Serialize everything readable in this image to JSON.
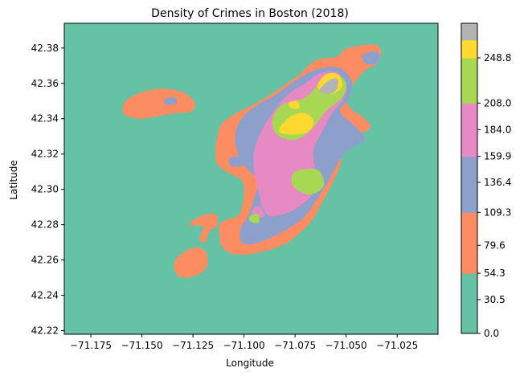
{
  "chart_data": {
    "type": "contourf",
    "title": "Density of Crimes in Boston (2018)",
    "xlabel": "Longitude",
    "ylabel": "Latitude",
    "xlim": [
      -71.188,
      -71.005
    ],
    "ylim": [
      42.218,
      42.394
    ],
    "x_ticks": [
      -71.175,
      -71.15,
      -71.125,
      -71.1,
      -71.075,
      -71.05,
      -71.025
    ],
    "x_tick_labels": [
      "−71.175",
      "−71.150",
      "−71.125",
      "−71.100",
      "−71.075",
      "−71.050",
      "−71.025"
    ],
    "y_ticks": [
      42.24,
      42.26,
      42.28,
      42.3,
      42.32,
      42.34,
      42.36,
      42.38,
      42.22
    ],
    "y_tick_labels": [
      "42.24",
      "42.26",
      "42.28",
      "42.30",
      "42.32",
      "42.34",
      "42.36",
      "42.38",
      "42.22"
    ],
    "grid": false,
    "colormap": "Set2",
    "levels": [
      0.0,
      30.5,
      54.3,
      79.6,
      109.3,
      136.4,
      159.9,
      184.0,
      208.0,
      248.8,
      265.0,
      280.0
    ],
    "level_colors": [
      "#66c2a5",
      "#66c2a5",
      "#fc8d62",
      "#fc8d62",
      "#8da0cb",
      "#8da0cb",
      "#e78ac3",
      "#e78ac3",
      "#a6d854",
      "#ffd92f",
      "#b3b3b3"
    ],
    "colorbar_ticks": [
      0.0,
      30.5,
      54.3,
      79.6,
      109.3,
      136.4,
      159.9,
      184.0,
      208.0,
      248.8
    ],
    "colorbar_tick_labels": [
      "0.0",
      "30.5",
      "54.3",
      "79.6",
      "109.3",
      "136.4",
      "159.9",
      "184.0",
      "208.0",
      "248.8"
    ],
    "regions": [
      {
        "level": 1,
        "color": "#fc8d62",
        "points": [
          [
            -71.074,
            42.364
          ],
          [
            -71.065,
            42.373
          ],
          [
            -71.055,
            42.375
          ],
          [
            -71.051,
            42.379
          ],
          [
            -71.046,
            42.381
          ],
          [
            -71.036,
            42.382
          ],
          [
            -71.033,
            42.378
          ],
          [
            -71.035,
            42.371
          ],
          [
            -71.04,
            42.368
          ],
          [
            -71.045,
            42.362
          ],
          [
            -71.048,
            42.356
          ],
          [
            -71.05,
            42.35
          ],
          [
            -71.047,
            42.345
          ],
          [
            -71.042,
            42.341
          ],
          [
            -71.038,
            42.336
          ],
          [
            -71.04,
            42.333
          ],
          [
            -71.045,
            42.331
          ],
          [
            -71.05,
            42.329
          ],
          [
            -71.052,
            42.322
          ],
          [
            -71.053,
            42.313
          ],
          [
            -71.057,
            42.303
          ],
          [
            -71.062,
            42.292
          ],
          [
            -71.067,
            42.282
          ],
          [
            -71.073,
            42.275
          ],
          [
            -71.08,
            42.269
          ],
          [
            -71.09,
            42.265
          ],
          [
            -71.1,
            42.263
          ],
          [
            -71.107,
            42.264
          ],
          [
            -71.111,
            42.268
          ],
          [
            -71.112,
            42.274
          ],
          [
            -71.112,
            42.28
          ],
          [
            -71.108,
            42.283
          ],
          [
            -71.103,
            42.285
          ],
          [
            -71.101,
            42.29
          ],
          [
            -71.1,
            42.298
          ],
          [
            -71.101,
            42.305
          ],
          [
            -71.107,
            42.309
          ],
          [
            -71.113,
            42.314
          ],
          [
            -71.114,
            42.322
          ],
          [
            -71.113,
            42.33
          ],
          [
            -71.111,
            42.337
          ],
          [
            -71.104,
            42.343
          ],
          [
            -71.097,
            42.347
          ],
          [
            -71.088,
            42.353
          ]
        ]
      },
      {
        "level": 1,
        "color": "#fc8d62",
        "points": [
          [
            -71.158,
            42.35
          ],
          [
            -71.15,
            42.355
          ],
          [
            -71.14,
            42.357
          ],
          [
            -71.13,
            42.355
          ],
          [
            -71.124,
            42.349
          ],
          [
            -71.126,
            42.344
          ],
          [
            -71.134,
            42.343
          ],
          [
            -71.144,
            42.341
          ],
          [
            -71.152,
            42.34
          ],
          [
            -71.159,
            42.343
          ]
        ]
      },
      {
        "level": 1,
        "color": "#fc8d62",
        "points": [
          [
            -71.127,
            42.28
          ],
          [
            -71.121,
            42.285
          ],
          [
            -71.114,
            42.286
          ],
          [
            -71.113,
            42.28
          ],
          [
            -71.117,
            42.276
          ],
          [
            -71.119,
            42.27
          ],
          [
            -71.122,
            42.272
          ],
          [
            -71.12,
            42.279
          ]
        ]
      },
      {
        "level": 1,
        "color": "#fc8d62",
        "points": [
          [
            -71.133,
            42.261
          ],
          [
            -71.125,
            42.267
          ],
          [
            -71.119,
            42.265
          ],
          [
            -71.118,
            42.257
          ],
          [
            -71.122,
            42.252
          ],
          [
            -71.13,
            42.25
          ],
          [
            -71.134,
            42.254
          ]
        ]
      },
      {
        "level": 2,
        "color": "#8da0cb",
        "points": [
          [
            -71.084,
            42.354
          ],
          [
            -71.07,
            42.365
          ],
          [
            -71.06,
            42.369
          ],
          [
            -71.052,
            42.368
          ],
          [
            -71.047,
            42.36
          ],
          [
            -71.049,
            42.351
          ],
          [
            -71.053,
            42.344
          ],
          [
            -71.045,
            42.335
          ],
          [
            -71.041,
            42.328
          ],
          [
            -71.048,
            42.323
          ],
          [
            -71.053,
            42.317
          ],
          [
            -71.058,
            42.306
          ],
          [
            -71.064,
            42.295
          ],
          [
            -71.07,
            42.285
          ],
          [
            -71.078,
            42.278
          ],
          [
            -71.088,
            42.272
          ],
          [
            -71.096,
            42.269
          ],
          [
            -71.101,
            42.27
          ],
          [
            -71.102,
            42.277
          ],
          [
            -71.098,
            42.285
          ],
          [
            -71.095,
            42.295
          ],
          [
            -71.093,
            42.305
          ],
          [
            -71.098,
            42.311
          ],
          [
            -71.103,
            42.32
          ],
          [
            -71.104,
            42.333
          ],
          [
            -71.098,
            42.344
          ]
        ]
      },
      {
        "level": 2,
        "color": "#8da0cb",
        "points": [
          [
            -71.042,
            42.376
          ],
          [
            -71.035,
            42.378
          ],
          [
            -71.034,
            42.372
          ],
          [
            -71.04,
            42.371
          ]
        ]
      },
      {
        "level": 2,
        "color": "#8da0cb",
        "points": [
          [
            -71.139,
            42.351
          ],
          [
            -71.134,
            42.352
          ],
          [
            -71.133,
            42.349
          ],
          [
            -71.138,
            42.348
          ]
        ]
      },
      {
        "level": 2,
        "color": "#8da0cb",
        "points": [
          [
            -71.107,
            42.318
          ],
          [
            -71.1,
            42.318
          ],
          [
            -71.099,
            42.314
          ],
          [
            -71.106,
            42.313
          ]
        ]
      },
      {
        "level": 3,
        "color": "#e78ac3",
        "points": [
          [
            -71.08,
            42.352
          ],
          [
            -71.07,
            42.36
          ],
          [
            -71.062,
            42.366
          ],
          [
            -71.054,
            42.366
          ],
          [
            -71.05,
            42.358
          ],
          [
            -71.052,
            42.35
          ],
          [
            -71.057,
            42.343
          ],
          [
            -71.062,
            42.332
          ],
          [
            -71.066,
            42.322
          ],
          [
            -71.065,
            42.31
          ],
          [
            -71.065,
            42.3
          ],
          [
            -71.07,
            42.293
          ],
          [
            -71.078,
            42.287
          ],
          [
            -71.087,
            42.285
          ],
          [
            -71.091,
            42.29
          ],
          [
            -71.093,
            42.3
          ],
          [
            -71.095,
            42.31
          ],
          [
            -71.095,
            42.322
          ],
          [
            -71.09,
            42.336
          ]
        ]
      },
      {
        "level": 3,
        "color": "#e78ac3",
        "points": [
          [
            -71.096,
            42.286
          ],
          [
            -71.094,
            42.284
          ],
          [
            -71.09,
            42.285
          ],
          [
            -71.092,
            42.29
          ],
          [
            -71.095,
            42.29
          ]
        ]
      },
      {
        "level": 4,
        "color": "#a6d854",
        "points": [
          [
            -71.081,
            42.348
          ],
          [
            -71.07,
            42.352
          ],
          [
            -71.063,
            42.36
          ],
          [
            -71.055,
            42.365
          ],
          [
            -71.05,
            42.36
          ],
          [
            -71.052,
            42.352
          ],
          [
            -71.06,
            42.344
          ],
          [
            -71.067,
            42.334
          ],
          [
            -71.075,
            42.328
          ],
          [
            -71.084,
            42.331
          ],
          [
            -71.086,
            42.34
          ]
        ]
      },
      {
        "level": 4,
        "color": "#a6d854",
        "points": [
          [
            -71.075,
            42.31
          ],
          [
            -71.064,
            42.311
          ],
          [
            -71.061,
            42.302
          ],
          [
            -71.068,
            42.297
          ],
          [
            -71.076,
            42.302
          ]
        ]
      },
      {
        "level": 4,
        "color": "#a6d854",
        "points": [
          [
            -71.097,
            42.285
          ],
          [
            -71.093,
            42.286
          ],
          [
            -71.093,
            42.281
          ],
          [
            -71.097,
            42.282
          ]
        ]
      },
      {
        "level": 5,
        "color": "#ffd92f",
        "points": [
          [
            -71.082,
            42.336
          ],
          [
            -71.076,
            42.342
          ],
          [
            -71.07,
            42.343
          ],
          [
            -71.066,
            42.339
          ],
          [
            -71.068,
            42.333
          ],
          [
            -71.075,
            42.331
          ],
          [
            -71.082,
            42.332
          ]
        ]
      },
      {
        "level": 5,
        "color": "#ffd92f",
        "points": [
          [
            -71.064,
            42.358
          ],
          [
            -71.06,
            42.365
          ],
          [
            -71.054,
            42.365
          ],
          [
            -71.052,
            42.358
          ],
          [
            -71.058,
            42.354
          ]
        ]
      },
      {
        "level": 5,
        "color": "#ffd92f",
        "points": [
          [
            -71.078,
            42.349
          ],
          [
            -71.074,
            42.35
          ],
          [
            -71.073,
            42.346
          ],
          [
            -71.077,
            42.346
          ]
        ]
      },
      {
        "level": 6,
        "color": "#b3b3b3",
        "points": [
          [
            -71.063,
            42.356
          ],
          [
            -71.058,
            42.362
          ],
          [
            -71.054,
            42.362
          ],
          [
            -71.055,
            42.356
          ],
          [
            -71.059,
            42.354
          ]
        ]
      }
    ]
  }
}
